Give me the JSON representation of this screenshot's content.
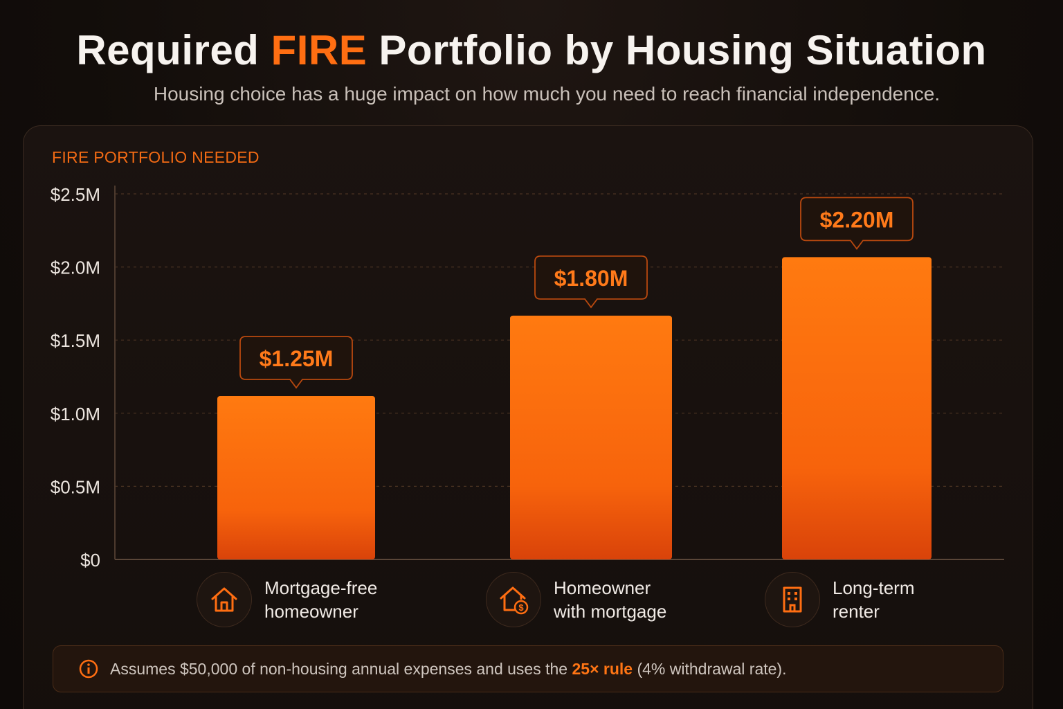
{
  "title": {
    "before": "Required ",
    "accent": "FIRE",
    "after": " Portfolio by Housing Situation"
  },
  "subtitle": "Housing choice has a huge impact on how much you need to reach financial independence.",
  "colors": {
    "accent": "#ff6e12",
    "bar_top": "#ff7a10",
    "bar_bottom": "#d9430a"
  },
  "chart_data": {
    "type": "bar",
    "ylabel": "FIRE PORTFOLIO NEEDED",
    "ylim": [
      0,
      2500000
    ],
    "y_ticks": [
      {
        "value": 0,
        "label": "$0"
      },
      {
        "value": 500000,
        "label": "$0.5M"
      },
      {
        "value": 1000000,
        "label": "$1.0M"
      },
      {
        "value": 1500000,
        "label": "$1.5M"
      },
      {
        "value": 2000000,
        "label": "$2.0M"
      },
      {
        "value": 2500000,
        "label": "$2.5M"
      }
    ],
    "grid": true,
    "categories": [
      "Mortgage-free homeowner",
      "Homeowner with mortgage",
      "Long-term renter"
    ],
    "values": [
      1250000,
      1800000,
      2200000
    ],
    "data_labels": [
      "$1.25M",
      "$1.80M",
      "$2.20M"
    ]
  },
  "categories": [
    {
      "line1": "Mortgage-free",
      "line2": "homeowner",
      "icon": "house-icon"
    },
    {
      "line1": "Homeowner",
      "line2": "with mortgage",
      "icon": "house-dollar-icon"
    },
    {
      "line1": "Long-term",
      "line2": "renter",
      "icon": "building-icon"
    }
  ],
  "note": {
    "icon": "info-icon",
    "before": "Assumes $50,000 of non-housing annual expenses and uses the ",
    "highlight": "25× rule",
    "after": " (4% withdrawal rate)."
  }
}
